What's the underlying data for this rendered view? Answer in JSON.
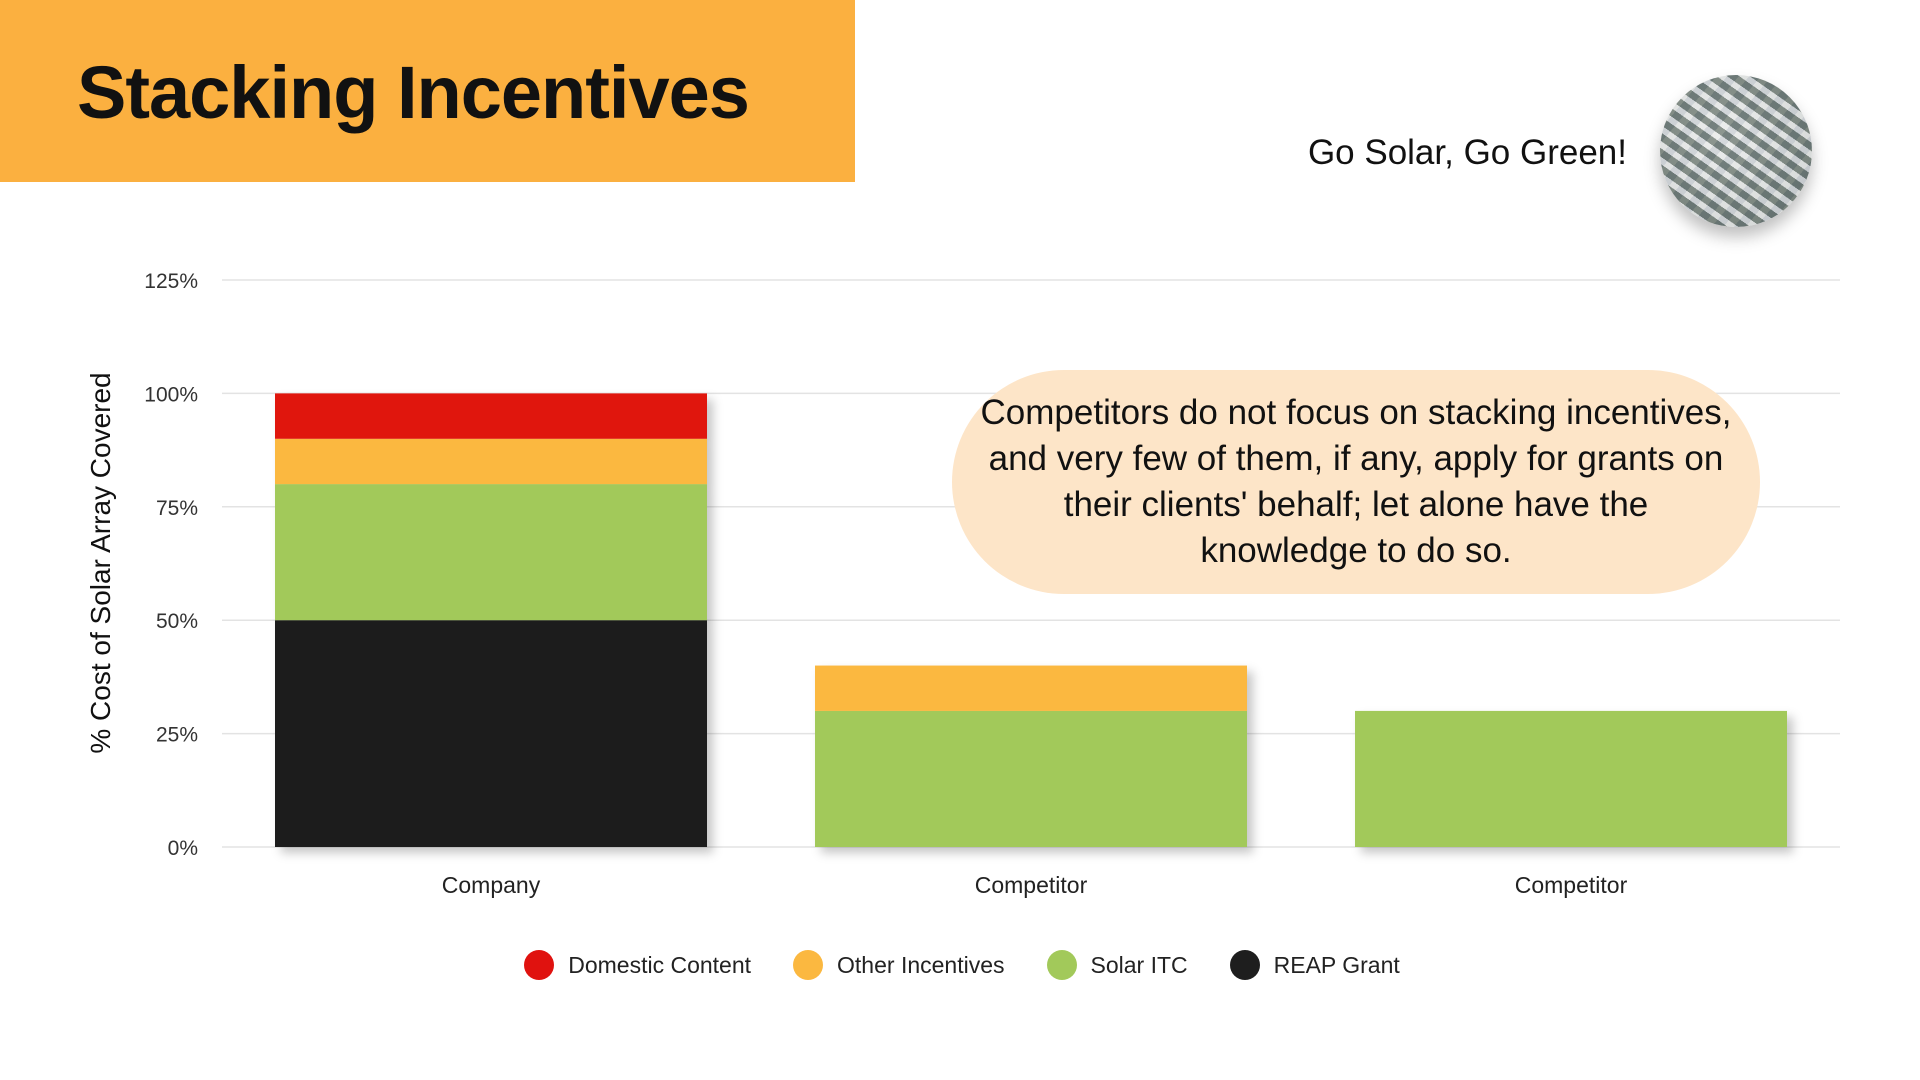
{
  "slide": {
    "title": "Stacking Incentives",
    "tagline": "Go Solar, Go Green!",
    "callout": "Competitors do not focus on stacking incentives, and very few of them, if any, apply for grants on their clients' behalf; let alone have the knowledge to do so.",
    "avatar_icon": "money-photo-icon",
    "colors": {
      "title_band": "#fbb040",
      "callout_bg": "#fde5c8"
    }
  },
  "chart_data": {
    "type": "bar",
    "stacked": true,
    "title": "",
    "xlabel": "",
    "ylabel": "% Cost of Solar Array Covered",
    "ylim": [
      0,
      125
    ],
    "y_ticks": [
      "0%",
      "25%",
      "50%",
      "75%",
      "100%",
      "125%"
    ],
    "y_tick_values": [
      0,
      25,
      50,
      75,
      100,
      125
    ],
    "grid": true,
    "legend_position": "bottom",
    "categories": [
      "Company",
      "Competitor",
      "Competitor"
    ],
    "series": [
      {
        "name": "REAP Grant",
        "color": "#1e1e1e",
        "values": [
          50,
          0,
          0
        ]
      },
      {
        "name": "Solar ITC",
        "color": "#a2c95a",
        "values": [
          30,
          30,
          30
        ]
      },
      {
        "name": "Other Incentives",
        "color": "#fbb840",
        "values": [
          10,
          10,
          0
        ]
      },
      {
        "name": "Domestic Content",
        "color": "#e0120f",
        "values": [
          10,
          0,
          0
        ]
      }
    ],
    "legend_order": [
      "Domestic Content",
      "Other Incentives",
      "Solar ITC",
      "REAP Grant"
    ]
  }
}
